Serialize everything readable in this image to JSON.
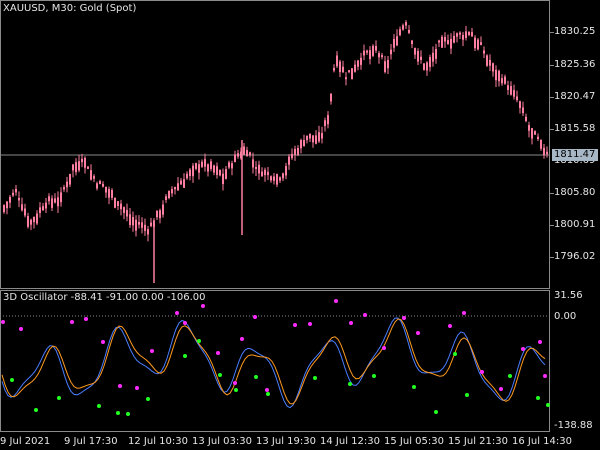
{
  "main": {
    "title": "XAUUSD, M30:  Gold (Spot)",
    "current_price": "1811.47",
    "y_labels": [
      "1830.25",
      "1825.36",
      "1820.47",
      "1815.58",
      "1810.69",
      "1805.80",
      "1800.91",
      "1796.02"
    ]
  },
  "osc": {
    "title": "3D Oscillator -88.41 -91.00 0.00 -106.00",
    "y_labels": [
      "31.56",
      "0.00",
      "-138.88"
    ]
  },
  "x_labels": [
    "9 Jul 2021",
    "9 Jul 17:30",
    "12 Jul 10:30",
    "13 Jul 03:30",
    "13 Jul 19:30",
    "14 Jul 12:30",
    "15 Jul 05:30",
    "15 Jul 21:30",
    "16 Jul 14:30"
  ],
  "colors": {
    "candle": "#ff7fa0",
    "osc_line1": "#ff9a1f",
    "osc_line2": "#4a7dff",
    "dot_top": "#ff2cff",
    "dot_bottom": "#22ff22",
    "grid_line": "#8a8a8a"
  }
}
